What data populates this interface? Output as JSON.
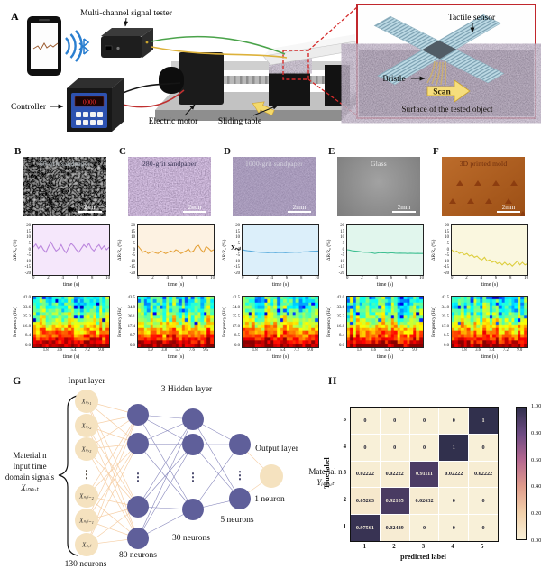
{
  "panelA": {
    "label": "A",
    "tester_label": "Multi-channel signal tester",
    "controller_label": "Controller",
    "motor_label": "Electric motor",
    "table_label": "Sliding table",
    "display_value": "0000",
    "inset": {
      "sensor_label": "Tactile sensor",
      "bristle_label": "Bristle",
      "scan_label": "Scan",
      "surface_label": "Surface of the tested object"
    }
  },
  "axes": {
    "line_ylabel": "ΔR/R₀ (%)",
    "line_xlabel": "time (s)",
    "line_yticks": [
      "20",
      "15",
      "10",
      "5",
      "0",
      "-5",
      "-10",
      "-15",
      "-20"
    ],
    "line_xticks": [
      "0",
      "2",
      "4",
      "6",
      "8",
      "10"
    ],
    "spec_ylabel": "Frequency (Hz)",
    "spec_xlabel": "time (s)"
  },
  "samples": [
    {
      "panel": "B",
      "photo_label": "60-grit sandpaper",
      "photo_label_color": "#aab2b8",
      "scale_label": "2mm",
      "line_color": "#bb86dd",
      "plot_bg": "#f5e7fb",
      "spec_yticks": [
        "42.0",
        "33.6",
        "25.2",
        "16.8",
        "8.4",
        "0.0"
      ],
      "spec_xticks": [
        "1.8",
        "3.6",
        "5.4",
        "7.2",
        "9.0"
      ],
      "values": [
        2,
        4.5,
        1,
        3.5,
        0,
        -2,
        2.5,
        6,
        2,
        -1,
        0.5,
        4,
        0,
        -2.5,
        2,
        5,
        3,
        0,
        -2,
        1,
        4,
        2,
        5,
        1,
        -1,
        2,
        4,
        0.5,
        3,
        0,
        2
      ]
    },
    {
      "panel": "C",
      "photo_label": "280-grit sandpaper",
      "photo_label_color": "#33304f",
      "scale_label": "2mm",
      "line_color": "#e5a33c",
      "plot_bg": "#fdf2e2",
      "spec_yticks": [
        "43.5",
        "34.8",
        "26.1",
        "17.4",
        "8.7",
        "0.0"
      ],
      "spec_xticks": [
        "1.9",
        "3.8",
        "5.7",
        "7.6",
        "9.5"
      ],
      "values": [
        3,
        0.5,
        -2,
        -1,
        -3,
        -2,
        -1.5,
        -2.5,
        -3,
        -1,
        -2,
        -3,
        -2,
        -1,
        -2,
        0,
        -1,
        -3,
        -2,
        -1,
        0.5,
        -2,
        -1,
        2.5,
        3.5,
        0,
        -2,
        2.5,
        1,
        -1,
        0
      ]
    },
    {
      "panel": "D",
      "photo_label": "1000-grit sandpaper",
      "photo_label_color": "#d5d3de",
      "scale_label": "2mm",
      "line_color": "#57aadc",
      "plot_bg": "#dceffa",
      "annotation": "Xₙ,ₗ",
      "spec_yticks": [
        "42.5",
        "34.0",
        "25.5",
        "17.0",
        "8.5",
        "0.0"
      ],
      "spec_xticks": [
        "1.8",
        "3.6",
        "5.4",
        "7.2",
        "9.0"
      ],
      "values": [
        0,
        -0.5,
        -0.8,
        -1,
        -1.3,
        -1.6,
        -1.8,
        -2,
        -2.1,
        -2.2,
        -2.4,
        -2.2,
        -2.1,
        -2.4,
        -2.2,
        -2.1,
        -2.2,
        -2.4,
        -2.2,
        -2.1,
        -2,
        -1.8,
        -2,
        -2,
        -1.7,
        -1.6,
        -1.6,
        -1.3,
        -1.2,
        -1.1,
        -1
      ]
    },
    {
      "panel": "E",
      "photo_label": "Glass",
      "photo_label_color": "#ebebeb",
      "scale_label": "2mm",
      "line_color": "#3fbf92",
      "plot_bg": "#e1f6ed",
      "spec_yticks": [
        "42.0",
        "33.6",
        "25.2",
        "16.8",
        "8.4",
        "0.0"
      ],
      "spec_xticks": [
        "1.8",
        "3.6",
        "5.4",
        "7.2",
        "9.0"
      ],
      "values": [
        0,
        -0.3,
        -0.8,
        -1,
        -1.2,
        -1.5,
        -1.8,
        -2,
        -2,
        -2.2,
        -2.5,
        -3,
        -2.6,
        -2.3,
        -2.5,
        -2.5,
        -2.7,
        -2.5,
        -2.5,
        -2.7,
        -2.8,
        -2.7,
        -2.8,
        -2.8,
        -3,
        -2.8,
        -2.9,
        -3,
        -2.9,
        -3,
        -3
      ]
    },
    {
      "panel": "F",
      "photo_label": "3D printed mold",
      "photo_label_color": "#6d2c0c",
      "scale_label": "2mm",
      "line_color": "#ddce3e",
      "plot_bg": "#faf7df",
      "spec_yticks": [
        "42.5",
        "34.0",
        "25.5",
        "17.0",
        "8.5",
        "0.0"
      ],
      "spec_xticks": [
        "1.8",
        "3.6",
        "5.4",
        "7.2",
        "9.0"
      ],
      "values": [
        0,
        -2,
        -1,
        -3,
        -2,
        -4,
        -3,
        -5,
        -4,
        -6,
        -5,
        -7,
        -8,
        -6,
        -9,
        -8,
        -10,
        -9,
        -11,
        -10,
        -12,
        -10,
        -12,
        -11,
        -13,
        -11,
        -9,
        -12,
        -10,
        -12,
        -11
      ]
    }
  ],
  "panelG": {
    "label": "G",
    "input_layer_label": "Input layer",
    "hidden_layer_label": "3 Hidden layer",
    "output_layer_label": "Output layer",
    "input_nodes": [
      "Xₙ,₁",
      "Xₙ,₂",
      "Xₙ,₃",
      "Xₙ,ₗ₋₂",
      "Xₙ,ₗ₋₁",
      "Xₙ,ₗ"
    ],
    "dots_glyph": "⋮",
    "left_text": [
      "Material n",
      "Input time",
      "domain signals",
      "Xᵢₙₚᵤₜ"
    ],
    "output_text": [
      "Material n",
      "Yᵢₙₚᵤₜ"
    ],
    "neuron_counts": {
      "input": "130 neurons",
      "h1": "80 neurons",
      "h2": "30 neurons",
      "h3": "5 neurons",
      "output": "1 neuron"
    }
  },
  "panelH": {
    "label": "H",
    "xlabel": "predicted label",
    "ylabel": "True label",
    "xticks": [
      "1",
      "2",
      "3",
      "4",
      "5"
    ],
    "yticks": [
      "5",
      "4",
      "3",
      "2",
      "1"
    ],
    "matrix": [
      [
        0,
        0,
        0,
        0,
        1
      ],
      [
        0,
        0,
        0,
        1,
        0
      ],
      [
        0.02222,
        0.02222,
        0.91111,
        0.02222,
        0.02222
      ],
      [
        0.05263,
        0.92105,
        0.02632,
        0,
        0
      ],
      [
        0.97561,
        0.02439,
        0,
        0,
        0
      ]
    ],
    "matrix_text": [
      [
        "0",
        "0",
        "0",
        "0",
        "1"
      ],
      [
        "0",
        "0",
        "0",
        "1",
        "0"
      ],
      [
        "0.02222",
        "0.02222",
        "0.91111",
        "0.02222",
        "0.02222"
      ],
      [
        "0.05263",
        "0.92105",
        "0.02632",
        "0",
        "0"
      ],
      [
        "0.97561",
        "0.02439",
        "0",
        "0",
        "0"
      ]
    ],
    "colorbar_ticks": [
      "1.00",
      "0.80",
      "0.60",
      "0.40",
      "0.20",
      "0.00"
    ],
    "colormap": {
      "stops": [
        "#f8f0d8",
        "#f2d1ab",
        "#e09c8c",
        "#b56890",
        "#6d4b82",
        "#31304d"
      ]
    }
  }
}
